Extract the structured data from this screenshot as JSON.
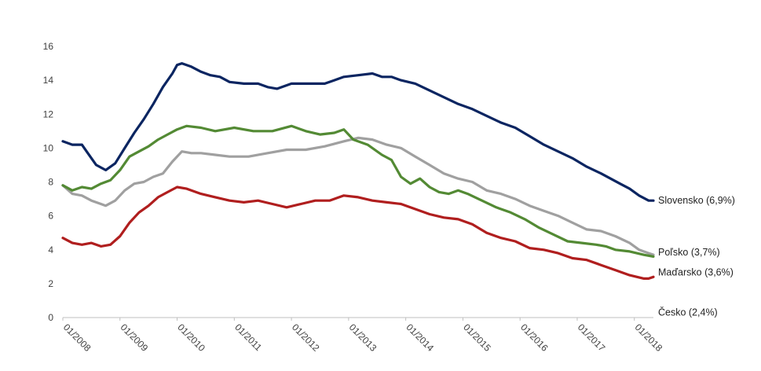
{
  "chart_data": {
    "type": "line",
    "title": "",
    "xlabel": "",
    "ylabel": "",
    "x_start": "2008-01",
    "x_end": "2018-05",
    "ylim": [
      0,
      16
    ],
    "y_ticks": [
      "0",
      "2",
      "4",
      "6",
      "8",
      "10",
      "12",
      "14",
      "16"
    ],
    "x_ticks": [
      {
        "label": "01/2008",
        "date": "2008-01"
      },
      {
        "label": "01/2009",
        "date": "2009-01"
      },
      {
        "label": "01/2010",
        "date": "2010-01"
      },
      {
        "label": "01/2011",
        "date": "2011-01"
      },
      {
        "label": "01/2012",
        "date": "2012-01"
      },
      {
        "label": "01/2013",
        "date": "2013-01"
      },
      {
        "label": "01/2014",
        "date": "2014-01"
      },
      {
        "label": "01/2015",
        "date": "2015-01"
      },
      {
        "label": "01/2016",
        "date": "2016-01"
      },
      {
        "label": "01/2017",
        "date": "2017-01"
      },
      {
        "label": "01/2018",
        "date": "2018-01"
      }
    ],
    "grid": false,
    "legend": "end-of-line labels",
    "series": [
      {
        "name": "Slovensko (6,9%)",
        "color": "#0b2561",
        "points": [
          [
            "2008-01",
            10.4
          ],
          [
            "2008-03",
            10.2
          ],
          [
            "2008-05",
            10.2
          ],
          [
            "2008-06",
            9.8
          ],
          [
            "2008-08",
            9.0
          ],
          [
            "2008-10",
            8.7
          ],
          [
            "2008-12",
            9.1
          ],
          [
            "2009-02",
            10.0
          ],
          [
            "2009-04",
            10.9
          ],
          [
            "2009-06",
            11.7
          ],
          [
            "2009-08",
            12.6
          ],
          [
            "2009-10",
            13.6
          ],
          [
            "2009-12",
            14.4
          ],
          [
            "2010-01",
            14.9
          ],
          [
            "2010-02",
            15.0
          ],
          [
            "2010-04",
            14.8
          ],
          [
            "2010-06",
            14.5
          ],
          [
            "2010-08",
            14.3
          ],
          [
            "2010-10",
            14.2
          ],
          [
            "2010-12",
            13.9
          ],
          [
            "2011-03",
            13.8
          ],
          [
            "2011-06",
            13.8
          ],
          [
            "2011-08",
            13.6
          ],
          [
            "2011-10",
            13.5
          ],
          [
            "2012-01",
            13.8
          ],
          [
            "2012-04",
            13.8
          ],
          [
            "2012-06",
            13.8
          ],
          [
            "2012-08",
            13.8
          ],
          [
            "2012-10",
            14.0
          ],
          [
            "2012-12",
            14.2
          ],
          [
            "2013-03",
            14.3
          ],
          [
            "2013-06",
            14.4
          ],
          [
            "2013-08",
            14.2
          ],
          [
            "2013-10",
            14.2
          ],
          [
            "2013-12",
            14.0
          ],
          [
            "2014-03",
            13.8
          ],
          [
            "2014-06",
            13.4
          ],
          [
            "2014-09",
            13.0
          ],
          [
            "2014-12",
            12.6
          ],
          [
            "2015-03",
            12.3
          ],
          [
            "2015-06",
            11.9
          ],
          [
            "2015-09",
            11.5
          ],
          [
            "2015-12",
            11.2
          ],
          [
            "2016-03",
            10.7
          ],
          [
            "2016-06",
            10.2
          ],
          [
            "2016-09",
            9.8
          ],
          [
            "2016-12",
            9.4
          ],
          [
            "2017-03",
            8.9
          ],
          [
            "2017-06",
            8.5
          ],
          [
            "2017-08",
            8.2
          ],
          [
            "2017-10",
            7.9
          ],
          [
            "2017-12",
            7.6
          ],
          [
            "2018-02",
            7.2
          ],
          [
            "2018-04",
            6.9
          ],
          [
            "2018-05",
            6.9
          ]
        ]
      },
      {
        "name": "Poľsko (3,7%)",
        "color": "#a0a0a0",
        "points": [
          [
            "2008-01",
            7.8
          ],
          [
            "2008-03",
            7.3
          ],
          [
            "2008-05",
            7.2
          ],
          [
            "2008-07",
            6.9
          ],
          [
            "2008-09",
            6.7
          ],
          [
            "2008-10",
            6.6
          ],
          [
            "2008-12",
            6.9
          ],
          [
            "2009-02",
            7.5
          ],
          [
            "2009-04",
            7.9
          ],
          [
            "2009-06",
            8.0
          ],
          [
            "2009-08",
            8.3
          ],
          [
            "2009-10",
            8.5
          ],
          [
            "2009-12",
            9.2
          ],
          [
            "2010-02",
            9.8
          ],
          [
            "2010-04",
            9.7
          ],
          [
            "2010-06",
            9.7
          ],
          [
            "2010-09",
            9.6
          ],
          [
            "2010-12",
            9.5
          ],
          [
            "2011-04",
            9.5
          ],
          [
            "2011-08",
            9.7
          ],
          [
            "2011-12",
            9.9
          ],
          [
            "2012-04",
            9.9
          ],
          [
            "2012-08",
            10.1
          ],
          [
            "2012-12",
            10.4
          ],
          [
            "2013-03",
            10.6
          ],
          [
            "2013-06",
            10.5
          ],
          [
            "2013-09",
            10.2
          ],
          [
            "2013-12",
            10.0
          ],
          [
            "2014-03",
            9.5
          ],
          [
            "2014-06",
            9.0
          ],
          [
            "2014-09",
            8.5
          ],
          [
            "2014-12",
            8.2
          ],
          [
            "2015-03",
            8.0
          ],
          [
            "2015-06",
            7.5
          ],
          [
            "2015-09",
            7.3
          ],
          [
            "2015-12",
            7.0
          ],
          [
            "2016-03",
            6.6
          ],
          [
            "2016-06",
            6.3
          ],
          [
            "2016-09",
            6.0
          ],
          [
            "2016-12",
            5.6
          ],
          [
            "2017-03",
            5.2
          ],
          [
            "2017-06",
            5.1
          ],
          [
            "2017-09",
            4.8
          ],
          [
            "2017-12",
            4.4
          ],
          [
            "2018-02",
            4.0
          ],
          [
            "2018-04",
            3.8
          ],
          [
            "2018-05",
            3.7
          ]
        ]
      },
      {
        "name": "Maďarsko (3,6%)",
        "color": "#538a34",
        "points": [
          [
            "2008-01",
            7.8
          ],
          [
            "2008-03",
            7.5
          ],
          [
            "2008-05",
            7.7
          ],
          [
            "2008-07",
            7.6
          ],
          [
            "2008-09",
            7.9
          ],
          [
            "2008-11",
            8.1
          ],
          [
            "2009-01",
            8.7
          ],
          [
            "2009-03",
            9.5
          ],
          [
            "2009-05",
            9.8
          ],
          [
            "2009-07",
            10.1
          ],
          [
            "2009-09",
            10.5
          ],
          [
            "2009-11",
            10.8
          ],
          [
            "2010-01",
            11.1
          ],
          [
            "2010-03",
            11.3
          ],
          [
            "2010-06",
            11.2
          ],
          [
            "2010-09",
            11.0
          ],
          [
            "2011-01",
            11.2
          ],
          [
            "2011-05",
            11.0
          ],
          [
            "2011-09",
            11.0
          ],
          [
            "2012-01",
            11.3
          ],
          [
            "2012-04",
            11.0
          ],
          [
            "2012-07",
            10.8
          ],
          [
            "2012-10",
            10.9
          ],
          [
            "2012-12",
            11.1
          ],
          [
            "2013-02",
            10.5
          ],
          [
            "2013-05",
            10.2
          ],
          [
            "2013-08",
            9.6
          ],
          [
            "2013-10",
            9.3
          ],
          [
            "2013-12",
            8.3
          ],
          [
            "2014-02",
            7.9
          ],
          [
            "2014-04",
            8.2
          ],
          [
            "2014-06",
            7.7
          ],
          [
            "2014-08",
            7.4
          ],
          [
            "2014-10",
            7.3
          ],
          [
            "2014-12",
            7.5
          ],
          [
            "2015-02",
            7.3
          ],
          [
            "2015-05",
            6.9
          ],
          [
            "2015-08",
            6.5
          ],
          [
            "2015-11",
            6.2
          ],
          [
            "2016-02",
            5.8
          ],
          [
            "2016-05",
            5.3
          ],
          [
            "2016-08",
            4.9
          ],
          [
            "2016-11",
            4.5
          ],
          [
            "2017-02",
            4.4
          ],
          [
            "2017-05",
            4.3
          ],
          [
            "2017-07",
            4.2
          ],
          [
            "2017-09",
            4.0
          ],
          [
            "2017-12",
            3.9
          ],
          [
            "2018-03",
            3.7
          ],
          [
            "2018-05",
            3.6
          ]
        ]
      },
      {
        "name": "Česko (2,4%)",
        "color": "#b01e1e",
        "points": [
          [
            "2008-01",
            4.7
          ],
          [
            "2008-03",
            4.4
          ],
          [
            "2008-05",
            4.3
          ],
          [
            "2008-07",
            4.4
          ],
          [
            "2008-09",
            4.2
          ],
          [
            "2008-11",
            4.3
          ],
          [
            "2009-01",
            4.8
          ],
          [
            "2009-03",
            5.6
          ],
          [
            "2009-05",
            6.2
          ],
          [
            "2009-07",
            6.6
          ],
          [
            "2009-09",
            7.1
          ],
          [
            "2009-11",
            7.4
          ],
          [
            "2010-01",
            7.7
          ],
          [
            "2010-03",
            7.6
          ],
          [
            "2010-06",
            7.3
          ],
          [
            "2010-09",
            7.1
          ],
          [
            "2010-12",
            6.9
          ],
          [
            "2011-03",
            6.8
          ],
          [
            "2011-06",
            6.9
          ],
          [
            "2011-09",
            6.7
          ],
          [
            "2011-12",
            6.5
          ],
          [
            "2012-03",
            6.7
          ],
          [
            "2012-06",
            6.9
          ],
          [
            "2012-09",
            6.9
          ],
          [
            "2012-12",
            7.2
          ],
          [
            "2013-03",
            7.1
          ],
          [
            "2013-06",
            6.9
          ],
          [
            "2013-09",
            6.8
          ],
          [
            "2013-12",
            6.7
          ],
          [
            "2014-03",
            6.4
          ],
          [
            "2014-06",
            6.1
          ],
          [
            "2014-09",
            5.9
          ],
          [
            "2014-12",
            5.8
          ],
          [
            "2015-03",
            5.5
          ],
          [
            "2015-06",
            5.0
          ],
          [
            "2015-09",
            4.7
          ],
          [
            "2015-12",
            4.5
          ],
          [
            "2016-03",
            4.1
          ],
          [
            "2016-06",
            4.0
          ],
          [
            "2016-09",
            3.8
          ],
          [
            "2016-12",
            3.5
          ],
          [
            "2017-03",
            3.4
          ],
          [
            "2017-06",
            3.1
          ],
          [
            "2017-09",
            2.8
          ],
          [
            "2017-12",
            2.5
          ],
          [
            "2018-03",
            2.3
          ],
          [
            "2018-04",
            2.3
          ],
          [
            "2018-05",
            2.4
          ]
        ]
      }
    ]
  }
}
